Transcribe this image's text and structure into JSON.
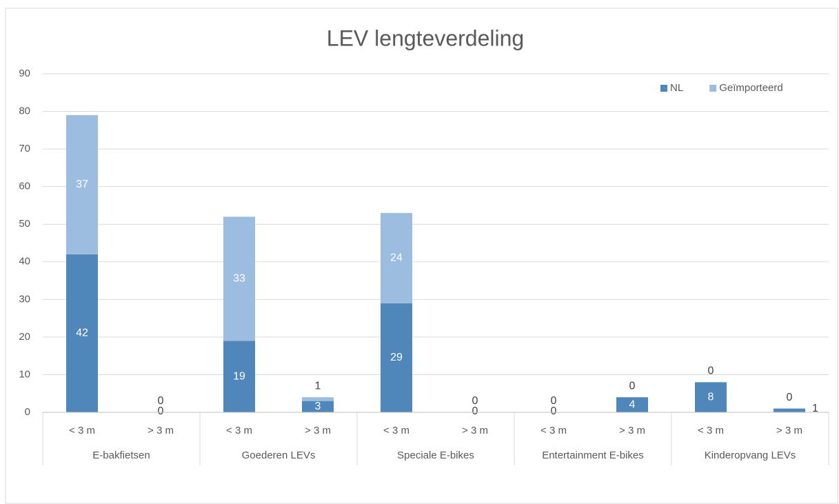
{
  "chart_data": {
    "type": "stacked_bar",
    "title": "LEV lengteverdeling",
    "categories": [
      "< 3 m",
      "> 3 m",
      "< 3 m",
      "> 3 m",
      "< 3 m",
      "> 3 m",
      "< 3 m",
      "> 3 m",
      "< 3 m",
      "> 3 m"
    ],
    "groups": [
      "E-bakfietsen",
      "Goederen LEVs",
      "Speciale E-bikes",
      "Entertainment E-bikes",
      "Kinderopvang LEVs"
    ],
    "series": [
      {
        "name": "NL",
        "color": "#4f87bb",
        "values": [
          42,
          0,
          19,
          3,
          29,
          0,
          0,
          4,
          8,
          1
        ]
      },
      {
        "name": "Geïmporteerd",
        "color": "#9dbde0",
        "values": [
          37,
          0,
          33,
          1,
          24,
          0,
          0,
          0,
          0,
          0
        ]
      }
    ],
    "ylim": [
      0,
      90
    ],
    "yticks": [
      0,
      10,
      20,
      30,
      40,
      50,
      60,
      70,
      80,
      90
    ],
    "grid": true,
    "legend": "top-right"
  }
}
